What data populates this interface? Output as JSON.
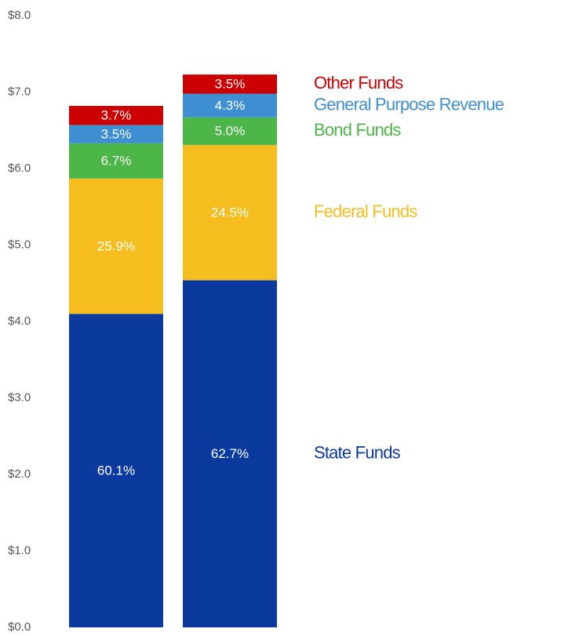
{
  "chart_data": {
    "type": "stacked-bar",
    "categories": [
      null,
      null
    ],
    "ylim": [
      0,
      8
    ],
    "yticks": [
      {
        "value": 0,
        "label": "$0.0"
      },
      {
        "value": 1,
        "label": "$1.0"
      },
      {
        "value": 2,
        "label": "$2.0"
      },
      {
        "value": 3,
        "label": "$3.0"
      },
      {
        "value": 4,
        "label": "$4.0"
      },
      {
        "value": 5,
        "label": "$5.0"
      },
      {
        "value": 6,
        "label": "$6.0"
      },
      {
        "value": 7,
        "label": "$7.0"
      },
      {
        "value": 8,
        "label": "$8.0"
      }
    ],
    "series": [
      {
        "name": "State Funds",
        "color": "#0a3a9e",
        "values": [
          4.1,
          4.54
        ],
        "share_labels": [
          "60.1%",
          "62.7%"
        ]
      },
      {
        "name": "Federal Funds",
        "color": "#f5be1e",
        "values": [
          1.77,
          1.77
        ],
        "share_labels": [
          "25.9%",
          "24.5%"
        ]
      },
      {
        "name": "Bond Funds",
        "color": "#4cb748",
        "values": [
          0.46,
          0.36
        ],
        "share_labels": [
          "6.7%",
          "5.0%"
        ]
      },
      {
        "name": "General Purpose Revenue",
        "color": "#3d8fd1",
        "values": [
          0.24,
          0.31
        ],
        "share_labels": [
          "3.5%",
          "4.3%"
        ]
      },
      {
        "name": "Other Funds",
        "color": "#cc0000",
        "values": [
          0.25,
          0.25
        ],
        "share_labels": [
          "3.7%",
          "3.5%"
        ]
      }
    ]
  }
}
